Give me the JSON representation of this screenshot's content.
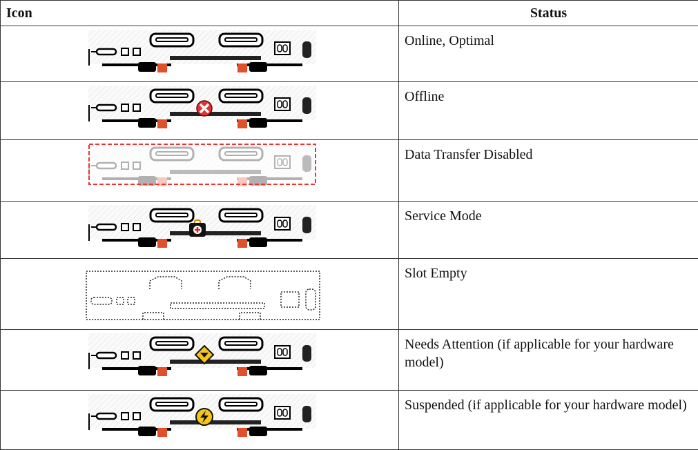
{
  "table": {
    "headers": [
      "Icon",
      "Status"
    ],
    "rows": [
      "Online, Optimal",
      "Offline",
      "Data Transfer Disabled",
      "Service Mode",
      "Slot Empty",
      "Needs Attention (if applicable for your hardware model)",
      "Suspended (if applicable for your hardware model)"
    ]
  }
}
